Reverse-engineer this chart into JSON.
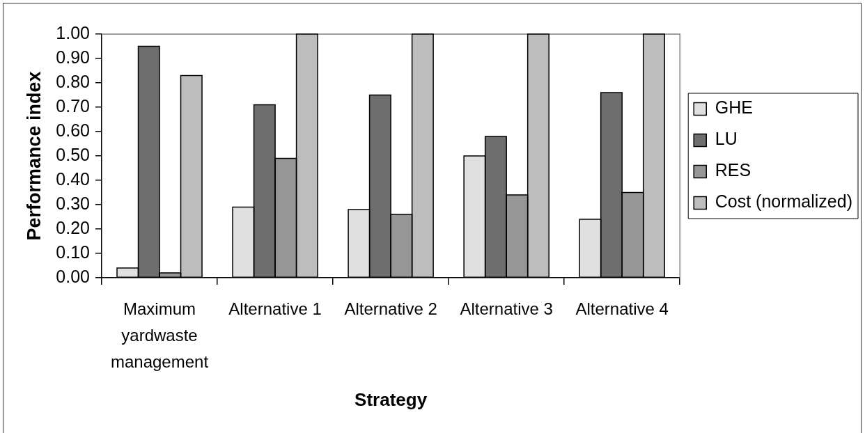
{
  "chart_data": {
    "type": "bar",
    "xlabel": "Strategy",
    "ylabel": "Performance index",
    "categories": [
      "Maximum yardwaste management",
      "Alternative 1",
      "Alternative 2",
      "Alternative 3",
      "Alternative 4"
    ],
    "series": [
      {
        "name": "GHE",
        "color": "#e0e0e0",
        "values": [
          0.04,
          0.29,
          0.28,
          0.5,
          0.24
        ]
      },
      {
        "name": "LU",
        "color": "#6e6e6e",
        "values": [
          0.95,
          0.71,
          0.75,
          0.58,
          0.76
        ]
      },
      {
        "name": "RES",
        "color": "#969696",
        "values": [
          0.02,
          0.49,
          0.26,
          0.34,
          0.35
        ]
      },
      {
        "name": "Cost (normalized)",
        "color": "#bdbdbd",
        "values": [
          0.83,
          1,
          1,
          1,
          1
        ]
      }
    ],
    "ylim": [
      0,
      1
    ],
    "yticks": [
      {
        "value": 0,
        "label": "0.00"
      },
      {
        "value": 0.1,
        "label": "0.10"
      },
      {
        "value": 0.2,
        "label": "0.20"
      },
      {
        "value": 0.3,
        "label": "0.30"
      },
      {
        "value": 0.4,
        "label": "0.40"
      },
      {
        "value": 0.5,
        "label": "0.50"
      },
      {
        "value": 0.6,
        "label": "0.60"
      },
      {
        "value": 0.7,
        "label": "0.70"
      },
      {
        "value": 0.8,
        "label": "0.80"
      },
      {
        "value": 0.9,
        "label": "0.90"
      },
      {
        "value": 1,
        "label": "1.00"
      }
    ],
    "legend": "right"
  }
}
